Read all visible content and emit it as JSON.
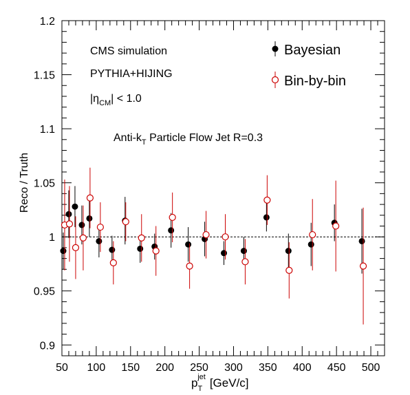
{
  "chart_data": {
    "type": "scatter",
    "xlabel": "p",
    "xlabel_sub": "T",
    "xlabel_sup": "jet",
    "xlabel_unit": "[GeV/c]",
    "ylabel": "Reco / Truth",
    "xlim": [
      50,
      520
    ],
    "ylim": [
      0.89,
      1.2
    ],
    "x_ticks": [
      50,
      100,
      150,
      200,
      250,
      300,
      350,
      400,
      450,
      500
    ],
    "y_ticks": [
      {
        "value": 0.9,
        "label": "0.9"
      },
      {
        "value": 0.95,
        "label": "0.95"
      },
      {
        "value": 1.0,
        "label": "1"
      },
      {
        "value": 1.05,
        "label": "1.05"
      },
      {
        "value": 1.1,
        "label": "1.1"
      },
      {
        "value": 1.15,
        "label": "1.15"
      },
      {
        "value": 1.2,
        "label": "1.2"
      }
    ],
    "reference_line": 1.0,
    "annotations": {
      "line1": "CMS simulation",
      "line2": "PYTHIA+HIJING",
      "eta_prefix": "|η",
      "eta_sub": "CM",
      "eta_suffix": "| < 1.0",
      "jet_prefix": "Anti-k",
      "jet_sub": "T",
      "jet_suffix": " Particle Flow Jet R=0.3"
    },
    "legend_position": "top-right",
    "series": [
      {
        "name": "Bayesian",
        "marker": "filled-circle",
        "color": "#000000",
        "points": [
          {
            "x": 52,
            "y": 0.987,
            "err": 0.017
          },
          {
            "x": 60,
            "y": 1.021,
            "err": 0.022
          },
          {
            "x": 69,
            "y": 1.028,
            "err": 0.019
          },
          {
            "x": 79,
            "y": 1.011,
            "err": 0.018
          },
          {
            "x": 90,
            "y": 1.017,
            "err": 0.017
          },
          {
            "x": 104,
            "y": 0.996,
            "err": 0.015
          },
          {
            "x": 123,
            "y": 0.988,
            "err": 0.013
          },
          {
            "x": 142,
            "y": 1.015,
            "err": 0.022
          },
          {
            "x": 164,
            "y": 0.989,
            "err": 0.013
          },
          {
            "x": 185,
            "y": 0.991,
            "err": 0.012
          },
          {
            "x": 209,
            "y": 1.006,
            "err": 0.016
          },
          {
            "x": 234,
            "y": 0.993,
            "err": 0.016
          },
          {
            "x": 258,
            "y": 0.998,
            "err": 0.016
          },
          {
            "x": 286,
            "y": 0.985,
            "err": 0.011
          },
          {
            "x": 315,
            "y": 0.987,
            "err": 0.013
          },
          {
            "x": 348,
            "y": 1.018,
            "err": 0.013
          },
          {
            "x": 380,
            "y": 0.987,
            "err": 0.016
          },
          {
            "x": 413,
            "y": 0.993,
            "err": 0.02
          },
          {
            "x": 447,
            "y": 1.013,
            "err": 0.017
          },
          {
            "x": 487,
            "y": 0.996,
            "err": 0.03
          }
        ]
      },
      {
        "name": "Bin-by-bin",
        "marker": "open-circle",
        "color": "#cc0000",
        "points": [
          {
            "x": 54,
            "y": 1.011,
            "err": 0.042
          },
          {
            "x": 61,
            "y": 1.012,
            "err": 0.035
          },
          {
            "x": 70,
            "y": 0.99,
            "err": 0.029
          },
          {
            "x": 81,
            "y": 0.999,
            "err": 0.03
          },
          {
            "x": 91,
            "y": 1.036,
            "err": 0.028
          },
          {
            "x": 106,
            "y": 1.009,
            "err": 0.023
          },
          {
            "x": 125,
            "y": 0.976,
            "err": 0.02
          },
          {
            "x": 143,
            "y": 1.014,
            "err": 0.018
          },
          {
            "x": 166,
            "y": 0.999,
            "err": 0.022
          },
          {
            "x": 187,
            "y": 0.987,
            "err": 0.023
          },
          {
            "x": 211,
            "y": 1.018,
            "err": 0.023
          },
          {
            "x": 236,
            "y": 0.973,
            "err": 0.021
          },
          {
            "x": 260,
            "y": 1.002,
            "err": 0.022
          },
          {
            "x": 288,
            "y": 1.0,
            "err": 0.021
          },
          {
            "x": 317,
            "y": 0.977,
            "err": 0.021
          },
          {
            "x": 349,
            "y": 1.034,
            "err": 0.023
          },
          {
            "x": 381,
            "y": 0.969,
            "err": 0.026
          },
          {
            "x": 415,
            "y": 1.002,
            "err": 0.033
          },
          {
            "x": 449,
            "y": 1.01,
            "err": 0.042
          },
          {
            "x": 489,
            "y": 0.973,
            "err": 0.054
          }
        ]
      }
    ]
  }
}
